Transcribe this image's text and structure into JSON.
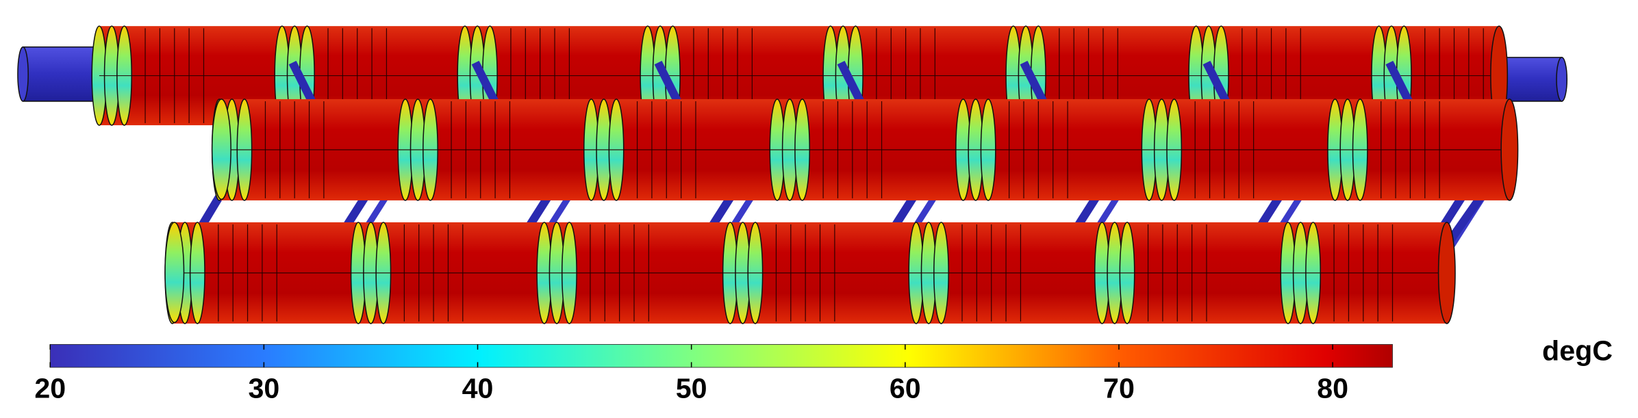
{
  "colorbar": {
    "unit": "degC",
    "range": [
      20,
      82.8
    ],
    "ticks": [
      20,
      30,
      40,
      50,
      60,
      70,
      80
    ]
  }
}
